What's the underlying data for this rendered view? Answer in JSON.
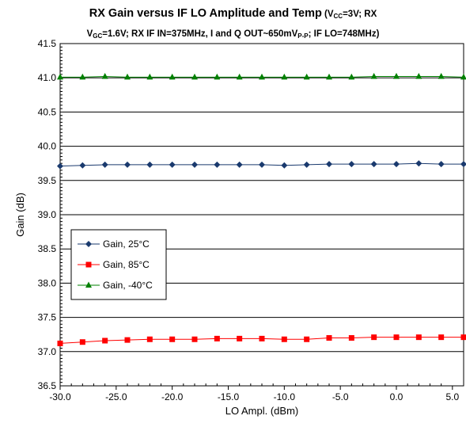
{
  "chart_data": {
    "type": "line",
    "title_main": "RX Gain versus IF LO Amplitude and Temp",
    "title_sub_a": " (V",
    "title_sub_a_sub": "CC",
    "title_sub_b": "=3V; RX",
    "title_line2_a": "V",
    "title_line2_a_sub": "GC",
    "title_line2_b": "=1.6V; RX IF IN=375MHz, I and Q OUT~650mV",
    "title_line2_b_sub": "P-P",
    "title_line2_c": "; IF LO=748MHz)",
    "xlabel": "LO Ampl. (dBm)",
    "ylabel": "Gain (dB)",
    "xlim": [
      -30,
      6
    ],
    "ylim": [
      36.5,
      41.5
    ],
    "xticks": [
      -30,
      -25,
      -20,
      -15,
      -10,
      -5,
      0,
      5
    ],
    "xtick_labels": [
      "-30.0",
      "-25.0",
      "-20.0",
      "-15.0",
      "-10.0",
      "-5.0",
      "0.0",
      "5.0"
    ],
    "yticks": [
      36.5,
      37.0,
      37.5,
      38.0,
      38.5,
      39.0,
      39.5,
      40.0,
      40.5,
      41.0,
      41.5
    ],
    "ytick_labels": [
      "36.5",
      "37.0",
      "37.5",
      "38.0",
      "38.5",
      "39.0",
      "39.5",
      "40.0",
      "40.5",
      "41.0",
      "41.5"
    ],
    "x": [
      -30,
      -28,
      -26,
      -24,
      -22,
      -20,
      -18,
      -16,
      -14,
      -12,
      -10,
      -8,
      -6,
      -4,
      -2,
      0,
      2,
      4,
      6
    ],
    "grid": "horizontal",
    "legend_placement": "middle-left",
    "series": [
      {
        "name": "Gain, 25°C",
        "color": "#1a3a6e",
        "marker": "diamond",
        "values": [
          39.71,
          39.72,
          39.73,
          39.73,
          39.73,
          39.73,
          39.73,
          39.73,
          39.73,
          39.73,
          39.72,
          39.73,
          39.74,
          39.74,
          39.74,
          39.74,
          39.75,
          39.74,
          39.74
        ]
      },
      {
        "name": "Gain, 85°C",
        "color": "#ff0000",
        "marker": "square",
        "values": [
          37.12,
          37.14,
          37.16,
          37.17,
          37.18,
          37.18,
          37.18,
          37.19,
          37.19,
          37.19,
          37.18,
          37.18,
          37.2,
          37.2,
          37.21,
          37.21,
          37.21,
          37.21,
          37.21
        ]
      },
      {
        "name": "Gain, -40°C",
        "color": "#008000",
        "marker": "triangle",
        "values": [
          41.01,
          41.01,
          41.02,
          41.01,
          41.01,
          41.01,
          41.01,
          41.01,
          41.01,
          41.01,
          41.01,
          41.01,
          41.01,
          41.01,
          41.02,
          41.02,
          41.02,
          41.02,
          41.01
        ]
      }
    ]
  }
}
